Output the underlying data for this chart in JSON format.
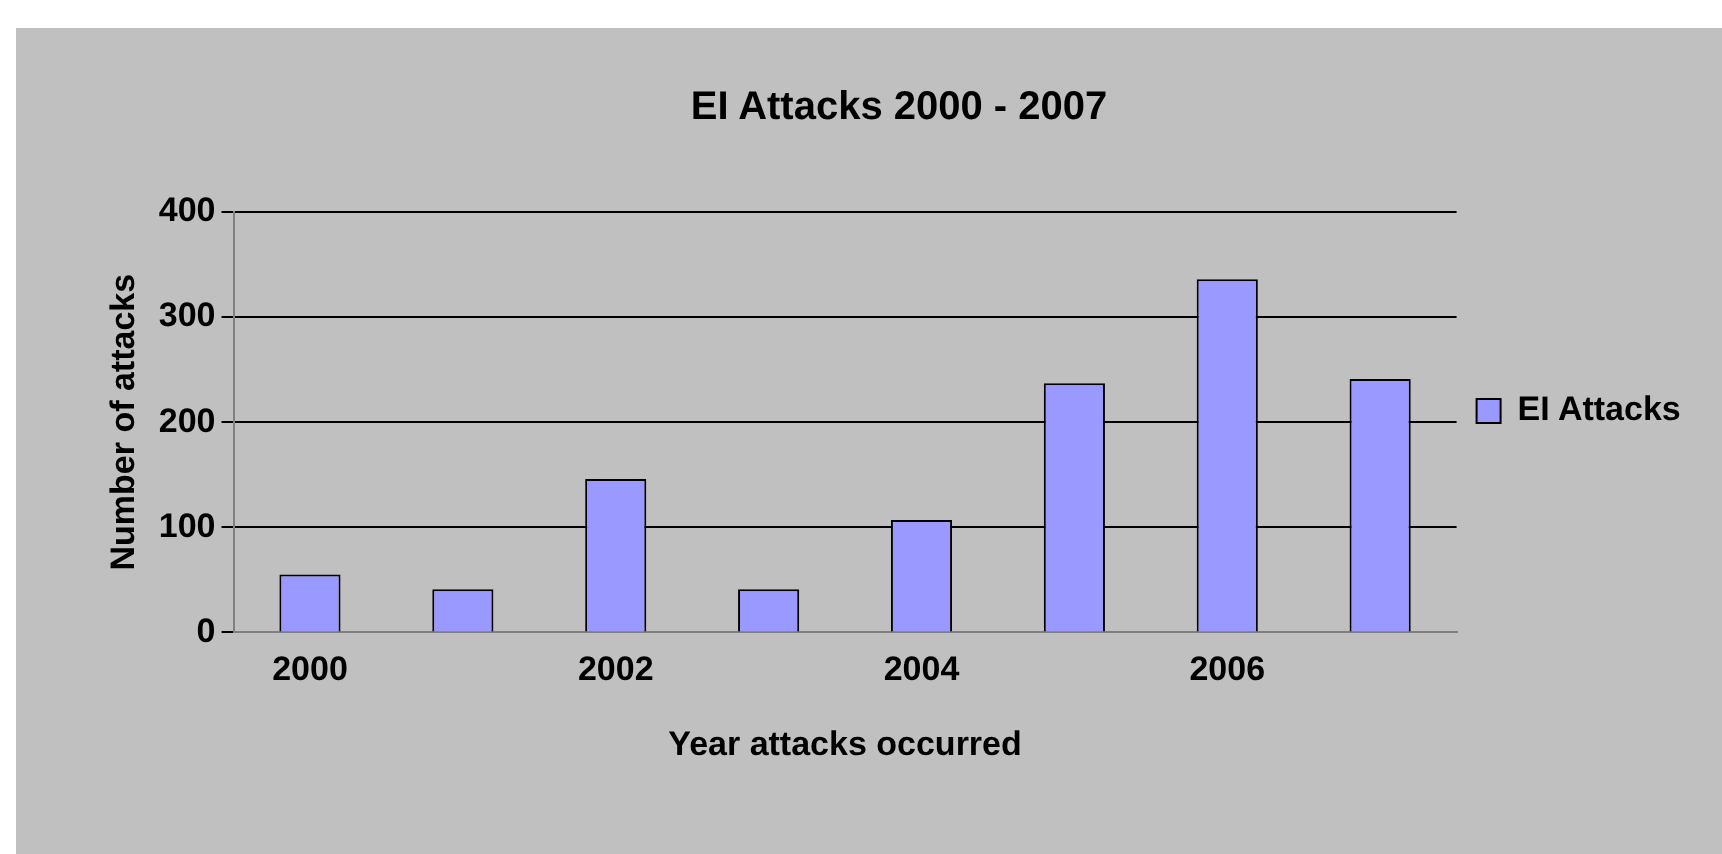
{
  "chart_data": {
    "type": "bar",
    "title": "EI Attacks 2000 - 2007",
    "xlabel": "Year attacks occurred",
    "ylabel": "Number of attacks",
    "categories": [
      "2000",
      null,
      "2002",
      null,
      "2004",
      null,
      "2006",
      null
    ],
    "series": [
      {
        "name": "EI Attacks",
        "color": "#9999ff",
        "values": [
          55,
          41,
          146,
          41,
          107,
          237,
          336,
          241
        ]
      }
    ],
    "ylim": [
      0,
      400
    ],
    "yticks": [
      0,
      100,
      200,
      300,
      400
    ],
    "grid": "y",
    "legend": "right"
  }
}
